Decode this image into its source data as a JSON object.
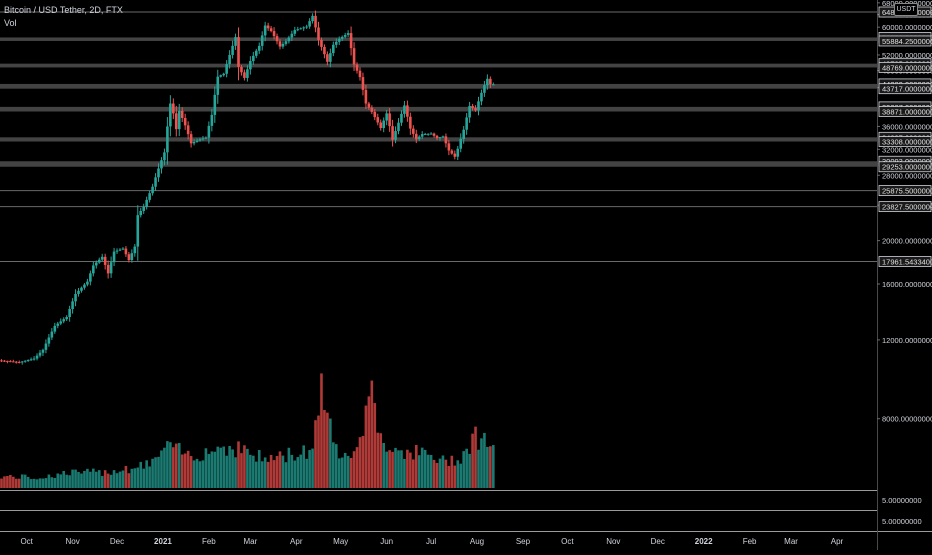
{
  "chart_data": {
    "type": "candlestick",
    "title": "Bitcoin / USD Tether, 2D, FTX",
    "subtitle": "Vol",
    "currency": "USDT",
    "x_range": [
      "2020-09-13",
      "2022-04-28"
    ],
    "ylim": [
      5600,
      69000
    ],
    "y_scale": "log",
    "grid": false,
    "x_ticks": [
      {
        "date": "2020-10-01",
        "label": "Oct",
        "bold": false
      },
      {
        "date": "2020-11-01",
        "label": "Nov",
        "bold": false
      },
      {
        "date": "2020-12-01",
        "label": "Dec",
        "bold": false
      },
      {
        "date": "2021-01-01",
        "label": "2021",
        "bold": true
      },
      {
        "date": "2021-02-01",
        "label": "Feb",
        "bold": false
      },
      {
        "date": "2021-03-01",
        "label": "Mar",
        "bold": false
      },
      {
        "date": "2021-04-01",
        "label": "Apr",
        "bold": false
      },
      {
        "date": "2021-05-01",
        "label": "May",
        "bold": false
      },
      {
        "date": "2021-06-01",
        "label": "Jun",
        "bold": false
      },
      {
        "date": "2021-07-01",
        "label": "Jul",
        "bold": false
      },
      {
        "date": "2021-08-01",
        "label": "Aug",
        "bold": false
      },
      {
        "date": "2021-09-01",
        "label": "Sep",
        "bold": false
      },
      {
        "date": "2021-10-01",
        "label": "Oct",
        "bold": false
      },
      {
        "date": "2021-11-01",
        "label": "Nov",
        "bold": false
      },
      {
        "date": "2021-12-01",
        "label": "Dec",
        "bold": false
      },
      {
        "date": "2022-01-01",
        "label": "2022",
        "bold": true
      },
      {
        "date": "2022-02-01",
        "label": "Feb",
        "bold": false
      },
      {
        "date": "2022-03-01",
        "label": "Mar",
        "bold": false
      },
      {
        "date": "2022-04-01",
        "label": "Apr",
        "bold": false
      }
    ],
    "y_ticks": [
      {
        "value": 68000,
        "label": "68000.00000000"
      },
      {
        "value": 64000,
        "label": "64000.00000000"
      },
      {
        "value": 60000,
        "label": "60000.00000000"
      },
      {
        "value": 52000,
        "label": "52000.00000000"
      },
      {
        "value": 48000,
        "label": "48000.00000000"
      },
      {
        "value": 44000,
        "label": "44000.00000000"
      },
      {
        "value": 36000,
        "label": "36000.00000000"
      },
      {
        "value": 32000,
        "label": "32000.00000000"
      },
      {
        "value": 28000,
        "label": "28000.00000000"
      },
      {
        "value": 24000,
        "label": "24000.00000000"
      },
      {
        "value": 20000,
        "label": "20000.00000000"
      },
      {
        "value": 16000,
        "label": "16000.00000000"
      },
      {
        "value": 12000,
        "label": "12000.00000000"
      },
      {
        "value": 8000,
        "label": "8000.00000000"
      }
    ],
    "level_labels": [
      {
        "value": 64860,
        "label": "64860.00000000"
      },
      {
        "value": 56906,
        "label": "56906.00000000"
      },
      {
        "value": 55884.25,
        "label": "55884.25000000"
      },
      {
        "value": 49725,
        "label": "49725.00000000"
      },
      {
        "value": 48769,
        "label": "48769.00000000"
      },
      {
        "value": 44800,
        "label": "44800.00000000"
      },
      {
        "value": 43717,
        "label": "43717.00000000"
      },
      {
        "value": 39807,
        "label": "39807.00000000"
      },
      {
        "value": 38871,
        "label": "38871.00000000"
      },
      {
        "value": 34037,
        "label": "34037.00000000"
      },
      {
        "value": 33308,
        "label": "33308.00000000"
      },
      {
        "value": 30093,
        "label": "30093.00000000"
      },
      {
        "value": 29253,
        "label": "29253.00000000"
      },
      {
        "value": 25875.5,
        "label": "25875.50000000"
      },
      {
        "value": 23827.5,
        "label": "23827.50000000"
      },
      {
        "value": 17961.54334003,
        "label": "17961.54334003"
      }
    ],
    "zones": [
      [
        55884.25,
        56906
      ],
      [
        48769,
        49725
      ],
      [
        43717,
        44800
      ],
      [
        38871,
        39807
      ],
      [
        33308,
        34037
      ],
      [
        29253,
        30093
      ]
    ],
    "single_levels": [
      64860,
      25875.5,
      23827.5,
      17961.54
    ],
    "bottom_scale_labels": [
      "5.00000000",
      "5.00000000"
    ],
    "colors": {
      "up": "#26a69a",
      "down": "#ef5350",
      "vol_up": "#1b7a71",
      "vol_down": "#b03a37",
      "zone": "#5a5a5a",
      "level": "#6a6a6a"
    },
    "price_anchors": [
      [
        "2020-09-14",
        10800
      ],
      [
        "2020-09-28",
        10700
      ],
      [
        "2020-10-08",
        10900
      ],
      [
        "2020-10-14",
        11400
      ],
      [
        "2020-10-22",
        12900
      ],
      [
        "2020-10-30",
        13500
      ],
      [
        "2020-11-05",
        15200
      ],
      [
        "2020-11-13",
        16200
      ],
      [
        "2020-11-17",
        17600
      ],
      [
        "2020-11-23",
        18400
      ],
      [
        "2020-11-27",
        16900
      ],
      [
        "2020-12-01",
        18900
      ],
      [
        "2020-12-07",
        19200
      ],
      [
        "2020-12-11",
        18100
      ],
      [
        "2020-12-15",
        19400
      ],
      [
        "2020-12-17",
        22800
      ],
      [
        "2020-12-21",
        23800
      ],
      [
        "2020-12-27",
        26400
      ],
      [
        "2020-12-31",
        29000
      ],
      [
        "2021-01-04",
        31500
      ],
      [
        "2021-01-08",
        40500
      ],
      [
        "2021-01-10",
        38500
      ],
      [
        "2021-01-12",
        35500
      ],
      [
        "2021-01-14",
        39000
      ],
      [
        "2021-01-18",
        36200
      ],
      [
        "2021-01-22",
        33000
      ],
      [
        "2021-01-28",
        33700
      ],
      [
        "2021-02-01",
        34000
      ],
      [
        "2021-02-05",
        38200
      ],
      [
        "2021-02-09",
        46500
      ],
      [
        "2021-02-13",
        47200
      ],
      [
        "2021-02-17",
        52000
      ],
      [
        "2021-02-21",
        57000
      ],
      [
        "2021-02-23",
        48900
      ],
      [
        "2021-02-27",
        46200
      ],
      [
        "2021-03-03",
        50400
      ],
      [
        "2021-03-09",
        54500
      ],
      [
        "2021-03-13",
        60500
      ],
      [
        "2021-03-17",
        58800
      ],
      [
        "2021-03-23",
        54300
      ],
      [
        "2021-03-27",
        55800
      ],
      [
        "2021-04-02",
        59100
      ],
      [
        "2021-04-10",
        60200
      ],
      [
        "2021-04-14",
        63600
      ],
      [
        "2021-04-18",
        56200
      ],
      [
        "2021-04-24",
        50200
      ],
      [
        "2021-04-28",
        54800
      ],
      [
        "2021-05-02",
        56500
      ],
      [
        "2021-05-08",
        58200
      ],
      [
        "2021-05-12",
        49500
      ],
      [
        "2021-05-16",
        46400
      ],
      [
        "2021-05-20",
        40500
      ],
      [
        "2021-05-24",
        38800
      ],
      [
        "2021-05-30",
        35700
      ],
      [
        "2021-06-03",
        38500
      ],
      [
        "2021-06-07",
        33600
      ],
      [
        "2021-06-11",
        36700
      ],
      [
        "2021-06-15",
        40100
      ],
      [
        "2021-06-19",
        35600
      ],
      [
        "2021-06-23",
        33700
      ],
      [
        "2021-06-27",
        34600
      ],
      [
        "2021-07-03",
        34700
      ],
      [
        "2021-07-07",
        33900
      ],
      [
        "2021-07-11",
        34200
      ],
      [
        "2021-07-15",
        31800
      ],
      [
        "2021-07-19",
        30800
      ],
      [
        "2021-07-21",
        32100
      ],
      [
        "2021-07-25",
        35400
      ],
      [
        "2021-07-29",
        40000
      ],
      [
        "2021-08-02",
        39100
      ],
      [
        "2021-08-06",
        42800
      ],
      [
        "2021-08-08",
        44500
      ],
      [
        "2021-08-10",
        46000
      ],
      [
        "2021-08-12",
        44700
      ]
    ],
    "volume_anchors": [
      [
        "2020-09-14",
        0.09
      ],
      [
        "2020-10-10",
        0.08
      ],
      [
        "2020-10-30",
        0.12
      ],
      [
        "2020-11-20",
        0.12
      ],
      [
        "2020-12-20",
        0.17
      ],
      [
        "2021-01-06",
        0.32
      ],
      [
        "2021-01-12",
        0.28
      ],
      [
        "2021-01-20",
        0.25
      ],
      [
        "2021-02-04",
        0.3
      ],
      [
        "2021-02-12",
        0.32
      ],
      [
        "2021-02-24",
        0.3
      ],
      [
        "2021-03-10",
        0.22
      ],
      [
        "2021-03-25",
        0.25
      ],
      [
        "2021-04-12",
        0.3
      ],
      [
        "2021-04-18",
        0.9
      ],
      [
        "2021-04-26",
        0.3
      ],
      [
        "2021-05-06",
        0.3
      ],
      [
        "2021-05-14",
        0.32
      ],
      [
        "2021-05-20",
        0.88
      ],
      [
        "2021-05-26",
        0.38
      ],
      [
        "2021-06-10",
        0.3
      ],
      [
        "2021-06-26",
        0.26
      ],
      [
        "2021-07-10",
        0.2
      ],
      [
        "2021-07-22",
        0.25
      ],
      [
        "2021-07-30",
        0.4
      ],
      [
        "2021-08-12",
        0.35
      ]
    ]
  }
}
